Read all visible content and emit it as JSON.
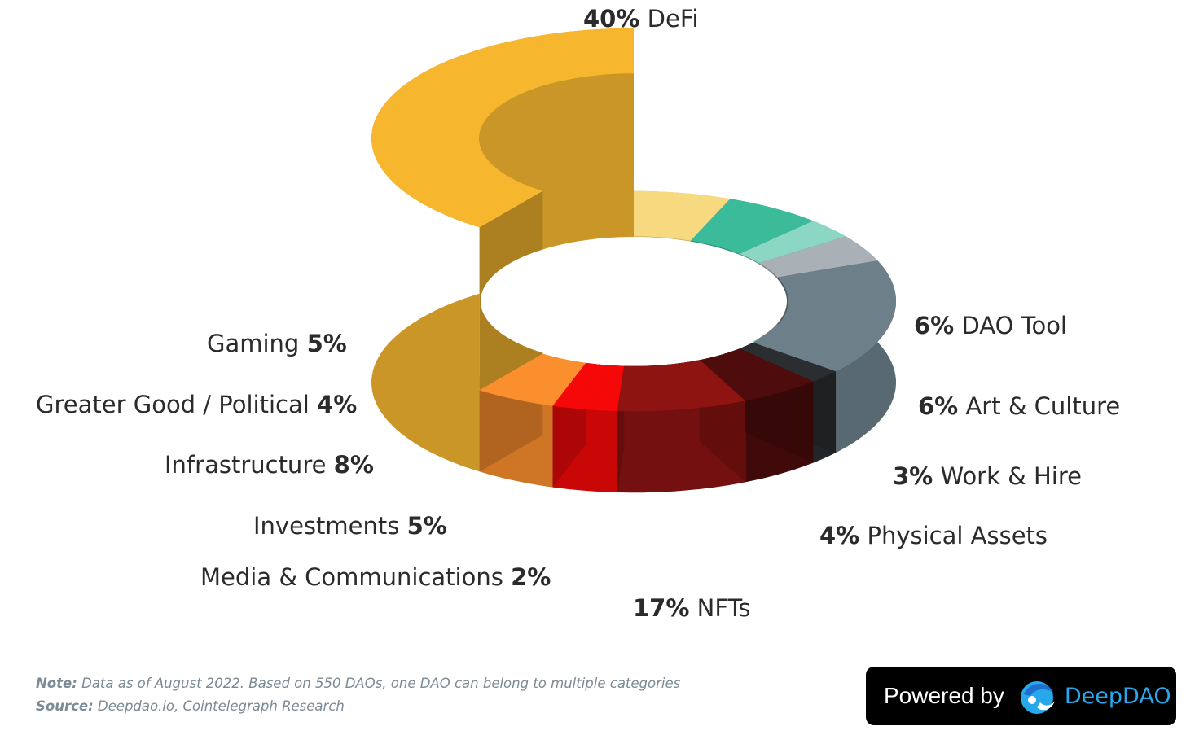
{
  "chart_data": {
    "type": "pie",
    "style": "3d-donut",
    "slices": [
      {
        "label": "DeFi",
        "pct_text": "40%",
        "value": 40,
        "color": "#F6B72F"
      },
      {
        "label": "DAO Tool",
        "pct_text": "6%",
        "value": 6,
        "color": "#F7DA80"
      },
      {
        "label": "Art & Culture",
        "pct_text": "6%",
        "value": 6,
        "color": "#3BBB9A"
      },
      {
        "label": "Work & Hire",
        "pct_text": "3%",
        "value": 3,
        "color": "#8BD7C3"
      },
      {
        "label": "Physical Assets",
        "pct_text": "4%",
        "value": 4,
        "color": "#A9B1B6"
      },
      {
        "label": "NFTs",
        "pct_text": "17%",
        "value": 17,
        "color": "#6D808A"
      },
      {
        "label": "Media & Communications",
        "pct_text": "2%",
        "value": 2,
        "color": "#2B2E31"
      },
      {
        "label": "Investments",
        "pct_text": "5%",
        "value": 5,
        "color": "#4F0C0C"
      },
      {
        "label": "Infrastructure",
        "pct_text": "8%",
        "value": 8,
        "color": "#8E1412"
      },
      {
        "label": "Greater Good / Political",
        "pct_text": "4%",
        "value": 4,
        "color": "#F50808"
      },
      {
        "label": "Gaming",
        "pct_text": "5%",
        "value": 5,
        "color": "#FB8F2E"
      }
    ]
  },
  "notes": {
    "note_label": "Note:",
    "note_text": " Data as of August 2022. Based on 550 DAOs, one DAO can belong to multiple categories",
    "source_label": "Source:",
    "source_text": " Deepdao.io, Cointelegraph Research"
  },
  "branding": {
    "powered_by": "Powered by",
    "name": "DeepDAO",
    "logo_icon": "dolphin-logo-icon"
  }
}
